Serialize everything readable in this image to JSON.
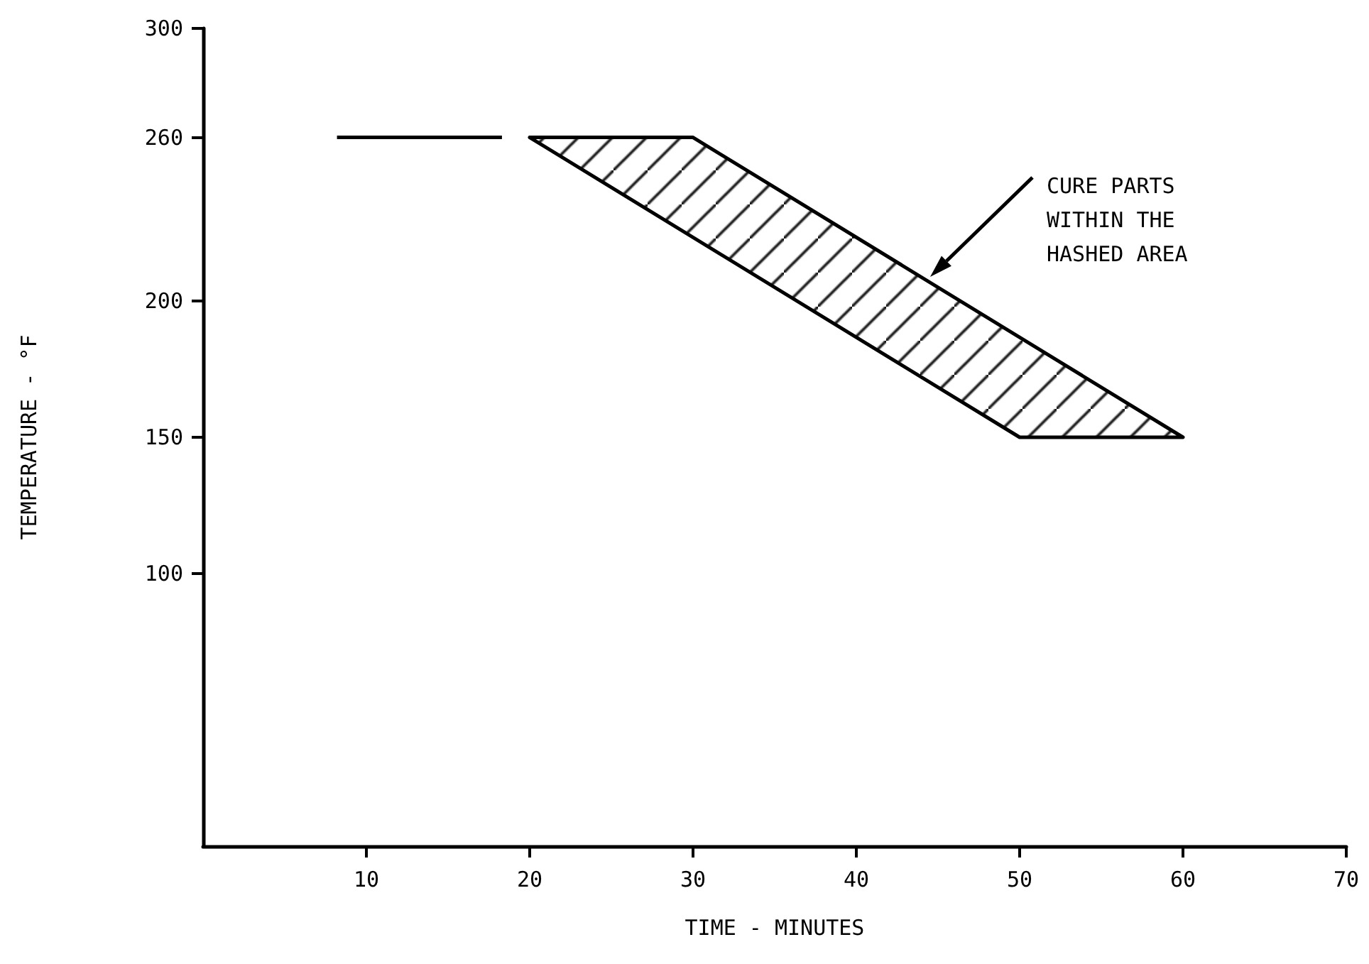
{
  "chart_data": {
    "type": "line",
    "xlabel": "TIME - MINUTES",
    "ylabel": "TEMPERATURE - °F",
    "xlim": [
      0,
      70
    ],
    "xticks": [
      10,
      20,
      30,
      40,
      50,
      60,
      70
    ],
    "ylim": [
      0,
      300
    ],
    "yticks": [
      100,
      150,
      200,
      260,
      300
    ],
    "series": [
      {
        "color": "#000000",
        "x": [
          8.2,
          18.3
        ],
        "values": [
          260,
          260
        ]
      },
      {
        "type": "area",
        "color": "#000000",
        "x": [
          20,
          30,
          60,
          50,
          20
        ],
        "values": [
          260,
          260,
          150,
          150,
          260
        ]
      }
    ],
    "annotations": [
      "CURE PARTS\nWITHIN THE\nHASHED AREA"
    ]
  }
}
